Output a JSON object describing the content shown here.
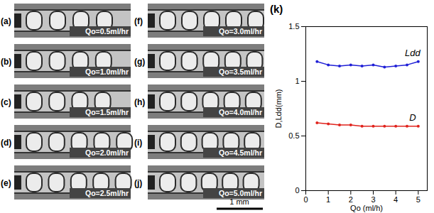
{
  "chart_data": {
    "type": "line",
    "title": "(k)",
    "x": [
      0.5,
      1.0,
      1.5,
      2.0,
      2.5,
      3.0,
      3.5,
      4.0,
      4.5,
      5.0
    ],
    "series": [
      {
        "name": "Ldd",
        "color": "#1f1fd6",
        "marker": "dot",
        "values": [
          1.18,
          1.15,
          1.14,
          1.15,
          1.14,
          1.15,
          1.13,
          1.14,
          1.15,
          1.18
        ]
      },
      {
        "name": "D",
        "color": "#e0231c",
        "marker": "dot",
        "values": [
          0.62,
          0.61,
          0.6,
          0.6,
          0.59,
          0.59,
          0.59,
          0.59,
          0.59,
          0.59
        ]
      }
    ],
    "xlabel": "Qo (ml/h)",
    "ylabel": "D,Ldd(mm)",
    "xlim": [
      0,
      5.4
    ],
    "ylim": [
      0,
      1.5
    ],
    "xticks": [
      0,
      1,
      2,
      3,
      4,
      5
    ],
    "yticks": [
      0,
      0.5,
      1,
      1.5
    ]
  },
  "panels": [
    {
      "label": "(a)",
      "text": "Qo=0.5ml/hr"
    },
    {
      "label": "(b)",
      "text": "Qo=1.0ml/hr"
    },
    {
      "label": "(c)",
      "text": "Qo=1.5ml/hr"
    },
    {
      "label": "(d)",
      "text": "Qo=2.0ml/hr"
    },
    {
      "label": "(e)",
      "text": "Qo=2.5ml/hr"
    },
    {
      "label": "(f)",
      "text": "Qo=3.0ml/hr"
    },
    {
      "label": "(g)",
      "text": "Qo=3.5ml/hr"
    },
    {
      "label": "(h)",
      "text": "Qo=4.0ml/hr"
    },
    {
      "label": "(i)",
      "text": "Qo=4.5ml/hr"
    },
    {
      "label": "(j)",
      "text": "Qo=5.0ml/hr"
    }
  ],
  "scale_bar": {
    "label": "1 mm"
  }
}
